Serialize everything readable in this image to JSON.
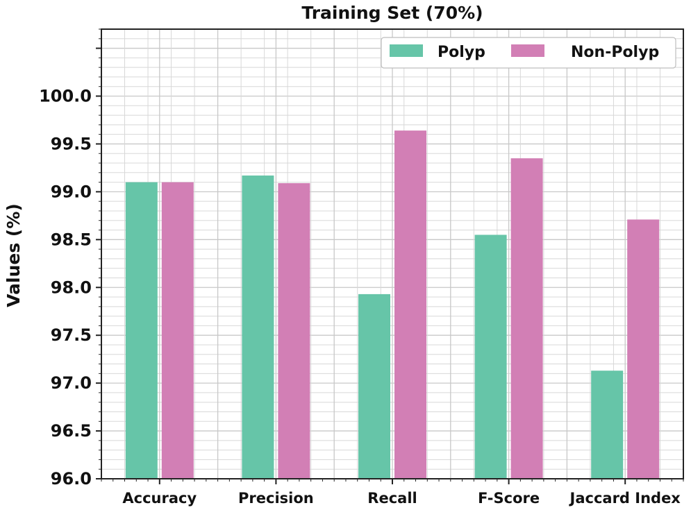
{
  "chart_data": {
    "type": "bar",
    "title": "Training Set (70%)",
    "xlabel": "",
    "ylabel": "Values (%)",
    "ylim": [
      96.0,
      100.7
    ],
    "yticks": [
      96.0,
      96.5,
      97.0,
      97.5,
      98.0,
      98.5,
      99.0,
      99.5,
      100.0
    ],
    "ytick_labels": [
      "96.0",
      "96.5",
      "97.0",
      "97.5",
      "98.0",
      "98.5",
      "99.0",
      "99.5",
      "100.0"
    ],
    "grid": true,
    "legend_position": "top-right",
    "categories": [
      "Accuracy",
      "Precision",
      "Recall",
      "F-Score",
      "Jaccard Index"
    ],
    "series": [
      {
        "name": "Polyp",
        "color": "#66c5a8",
        "values": [
          99.1,
          99.17,
          97.93,
          98.55,
          97.13
        ]
      },
      {
        "name": "Non-Polyp",
        "color": "#d27fb5",
        "values": [
          99.1,
          99.09,
          99.64,
          99.35,
          98.71
        ]
      }
    ]
  }
}
